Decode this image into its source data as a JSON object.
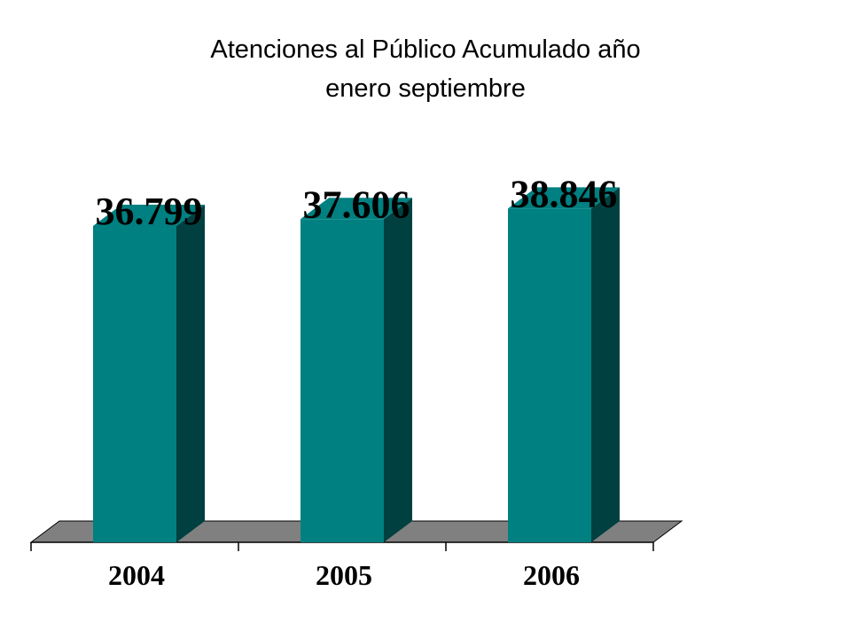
{
  "chart_data": {
    "type": "bar",
    "style": "3d",
    "title_lines": [
      "Atenciones al Público Acumulado año",
      "enero septiembre"
    ],
    "categories": [
      "2004",
      "2005",
      "2006"
    ],
    "values": [
      36799,
      37606,
      38846
    ],
    "value_labels": [
      "36.799",
      "37.606",
      "38.846"
    ],
    "xlabel": "",
    "ylabel": "",
    "ylim": [
      0,
      42000
    ],
    "grid": false,
    "legend": "none",
    "colors": {
      "bar_front": "#008080",
      "bar_side": "#004040",
      "floor": "#808080",
      "axis": "#000000"
    }
  }
}
